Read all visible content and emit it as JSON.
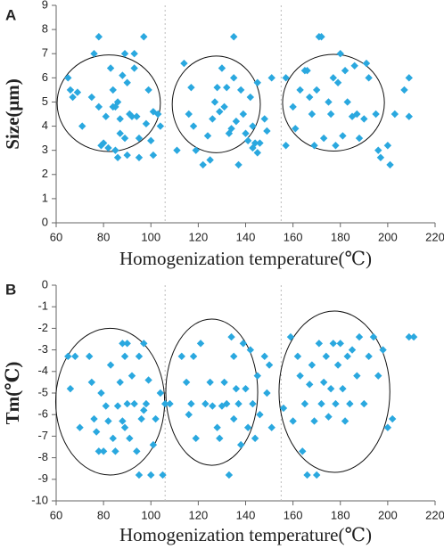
{
  "chart_data": [
    {
      "type": "scatter",
      "panel_label": "A",
      "x_label": "Homogenization temperature(℃)",
      "y_label": "Size(μm)",
      "color": "#2aa8df",
      "xlim": [
        60,
        220
      ],
      "xticks": [
        60,
        80,
        100,
        120,
        140,
        160,
        180,
        200,
        220
      ],
      "ylim": [
        0,
        9
      ],
      "yticks": [
        0,
        1,
        2,
        3,
        4,
        5,
        6,
        7,
        8,
        9
      ],
      "dividers": [
        106,
        155
      ],
      "ellipses": [
        {
          "cx": 82.2,
          "cy": 4.95,
          "rx": 21.8,
          "ry": 2.0
        },
        {
          "cx": 127.6,
          "cy": 4.9,
          "rx": 18.6,
          "ry": 2.0
        },
        {
          "cx": 177.1,
          "cy": 4.97,
          "rx": 21.5,
          "ry": 2.0
        }
      ],
      "x": [
        65,
        66,
        67,
        69,
        71,
        75,
        76,
        78,
        78,
        79,
        80,
        81,
        82,
        83,
        84,
        84,
        85,
        85,
        86,
        86,
        87,
        87,
        88,
        89,
        89,
        90,
        90,
        91,
        92,
        93,
        93,
        94,
        95,
        95,
        97,
        98,
        99,
        100,
        101,
        101,
        103,
        104,
        111,
        114,
        116,
        117,
        118,
        119,
        122,
        124,
        125,
        126,
        127,
        128,
        129,
        130,
        131,
        132,
        133,
        134,
        135,
        135,
        136,
        137,
        138,
        139,
        140,
        141,
        142,
        143,
        143,
        144,
        145,
        145,
        146,
        148,
        149,
        151,
        157,
        157,
        160,
        161,
        163,
        165,
        166,
        167,
        168,
        169,
        170,
        171,
        172,
        173,
        175,
        176,
        177,
        178,
        179,
        180,
        181,
        182,
        183,
        185,
        186,
        187,
        188,
        190,
        191,
        192,
        195,
        196,
        197,
        200,
        201,
        203,
        207,
        209,
        209
      ],
      "values": [
        6,
        5.5,
        5.2,
        5.4,
        4,
        5.2,
        7,
        7.7,
        4.8,
        3.2,
        3.3,
        4.4,
        3.1,
        6.4,
        5.5,
        4.8,
        4.8,
        3,
        5,
        2.7,
        4.3,
        3.7,
        6.1,
        7,
        3.5,
        2.8,
        5.8,
        4.5,
        4.4,
        6.4,
        7,
        4.4,
        3.5,
        2.7,
        7.7,
        4.1,
        5.5,
        3.4,
        2.8,
        4.6,
        4.5,
        4,
        3,
        6.6,
        4.5,
        5.6,
        4,
        3,
        2.4,
        3.6,
        2.6,
        4.3,
        5,
        5.6,
        4.6,
        6.4,
        4.8,
        5.6,
        3.7,
        3.9,
        6,
        7.7,
        4.2,
        2.4,
        5.5,
        4.5,
        3.7,
        3.4,
        5.2,
        3.1,
        4,
        3.3,
        2.9,
        5.8,
        3.3,
        4.3,
        3.8,
        6,
        3.2,
        6,
        4.8,
        3.9,
        5.5,
        6.3,
        6.3,
        5.2,
        4.5,
        3.2,
        5.5,
        7.7,
        7.7,
        3.5,
        5,
        4.5,
        6,
        3.2,
        5.8,
        7,
        3.6,
        6.3,
        5,
        4.4,
        6.5,
        4.5,
        3.5,
        4.3,
        6.6,
        6,
        4.5,
        3,
        2.7,
        3.2,
        2.4,
        4.5,
        5.5,
        6,
        4.4
      ]
    },
    {
      "type": "scatter",
      "panel_label": "B",
      "x_label": "Homogenization temperature(℃)",
      "y_label": "Tm(℃)",
      "color": "#2aa8df",
      "xlim": [
        60,
        220
      ],
      "xticks": [
        60,
        80,
        100,
        120,
        140,
        160,
        180,
        200,
        220
      ],
      "ylim": [
        -10,
        0
      ],
      "yticks": [
        0,
        -1,
        -2,
        -3,
        -4,
        -5,
        -6,
        -7,
        -8,
        -9,
        -10
      ],
      "dividers": [
        106,
        155
      ],
      "ellipses": [
        {
          "cx": 82.8,
          "cy": -5.4,
          "rx": 23,
          "ry": 3.4
        },
        {
          "cx": 125.7,
          "cy": -4.96,
          "rx": 19.4,
          "ry": 3.39
        },
        {
          "cx": 177.5,
          "cy": -4.94,
          "rx": 23.4,
          "ry": 3.74
        }
      ],
      "x": [
        65,
        66,
        68,
        70,
        74,
        75,
        76,
        77,
        78,
        79,
        80,
        81,
        82,
        83,
        84,
        85,
        86,
        87,
        88,
        88,
        89,
        89,
        90,
        90,
        91,
        92,
        93,
        94,
        95,
        95,
        96,
        97,
        97,
        98,
        99,
        100,
        101,
        102,
        104,
        105,
        106,
        108,
        113,
        115,
        116,
        117,
        118,
        119,
        121,
        123,
        125,
        126,
        128,
        129,
        130,
        131,
        132,
        133,
        134,
        135,
        135,
        136,
        137,
        138,
        139,
        140,
        141,
        142,
        143,
        144,
        145,
        146,
        148,
        149,
        150,
        151,
        156,
        159,
        160,
        162,
        163,
        164,
        165,
        166,
        167,
        168,
        169,
        170,
        171,
        172,
        173,
        174,
        175,
        176,
        177,
        178,
        179,
        180,
        181,
        182,
        183,
        184,
        185,
        187,
        188,
        190,
        192,
        194,
        196,
        198,
        200,
        202,
        209,
        211
      ],
      "values": [
        -3.3,
        -4.8,
        -3.3,
        -6.6,
        -3.3,
        -4.5,
        -6.2,
        -6.8,
        -7.7,
        -5,
        -7.7,
        -5.6,
        -6.3,
        -3.7,
        -7.1,
        -7.7,
        -5.6,
        -4.5,
        -2.7,
        -6.3,
        -3.3,
        -6.6,
        -5.5,
        -2.7,
        -7.1,
        -4.2,
        -5.5,
        -7.7,
        -3.3,
        -8.8,
        -6.2,
        -5.8,
        -2.7,
        -5.5,
        -4.4,
        -8.8,
        -7.4,
        -6.2,
        -5,
        -8.8,
        -5.5,
        -5.5,
        -3.3,
        -4.5,
        -6,
        -5.5,
        -3.3,
        -7.1,
        -2.7,
        -5.5,
        -4.5,
        -5.6,
        -6.6,
        -7.1,
        -5.6,
        -4.5,
        -5.5,
        -8.8,
        -2.4,
        -3.3,
        -6.2,
        -4.8,
        -5.5,
        -7.4,
        -2.7,
        -4.8,
        -6.6,
        -3,
        -5.5,
        -7.1,
        -4.2,
        -6,
        -3.3,
        -5,
        -3.7,
        -6.6,
        -5.7,
        -2.4,
        -6.3,
        -3.3,
        -4.2,
        -7.7,
        -5.5,
        -8.8,
        -4.6,
        -3.7,
        -6.3,
        -8.8,
        -2.7,
        -5.5,
        -4.5,
        -3.3,
        -6.1,
        -4.8,
        -2.7,
        -5.5,
        -3.7,
        -2.7,
        -4.8,
        -6.3,
        -3.3,
        -5.5,
        -3,
        -4.2,
        -2.4,
        -5.5,
        -3.3,
        -2.4,
        -4.2,
        -3,
        -6.6,
        -6.2,
        -2.4,
        -2.4
      ]
    }
  ]
}
